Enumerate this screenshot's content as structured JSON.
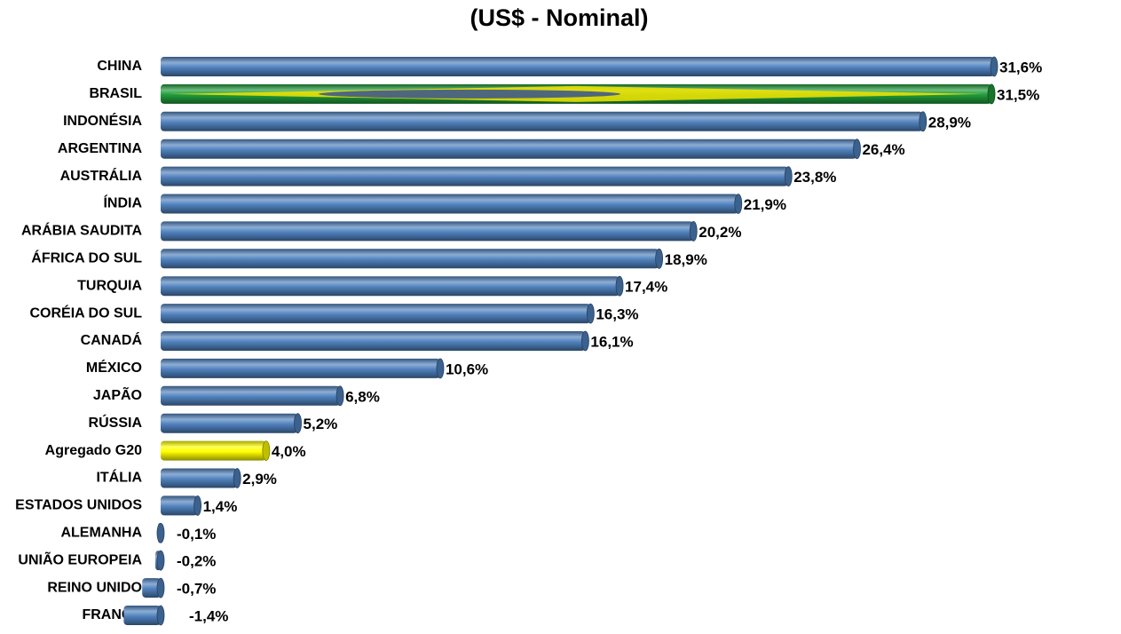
{
  "chart_data": {
    "type": "bar",
    "orientation": "horizontal",
    "title": "(US$ - Nominal)",
    "categories": [
      "CHINA",
      "BRASIL",
      "INDONÉSIA",
      "ARGENTINA",
      "AUSTRÁLIA",
      "ÍNDIA",
      "ARÁBIA SAUDITA",
      "ÁFRICA DO SUL",
      "TURQUIA",
      "CORÉIA DO SUL",
      "CANADÁ",
      "MÉXICO",
      "JAPÃO",
      "RÚSSIA",
      "Agregado G20",
      "ITÁLIA",
      "ESTADOS UNIDOS",
      "ALEMANHA",
      "UNIÃO EUROPEIA",
      "REINO UNIDO",
      "FRANÇA"
    ],
    "values": [
      31.6,
      31.5,
      28.9,
      26.4,
      23.8,
      21.9,
      20.2,
      18.9,
      17.4,
      16.3,
      16.1,
      10.6,
      6.8,
      5.2,
      4.0,
      2.9,
      1.4,
      -0.1,
      -0.2,
      -0.7,
      -1.4
    ],
    "value_labels": [
      "31,6%",
      "31,5%",
      "28,9%",
      "26,4%",
      "23,8%",
      "21,9%",
      "20,2%",
      "18,9%",
      "17,4%",
      "16,3%",
      "16,1%",
      "10,6%",
      "6,8%",
      "5,2%",
      "4,0%",
      "2,9%",
      "1,4%",
      "-0,1%",
      "-0,2%",
      "-0,7%",
      "-1,4%"
    ],
    "colors": [
      "#4f81bd",
      "#1f9a3a",
      "#4f81bd",
      "#4f81bd",
      "#4f81bd",
      "#4f81bd",
      "#4f81bd",
      "#4f81bd",
      "#4f81bd",
      "#4f81bd",
      "#4f81bd",
      "#4f81bd",
      "#4f81bd",
      "#4f81bd",
      "#ffff00",
      "#4f81bd",
      "#4f81bd",
      "#4f81bd",
      "#4f81bd",
      "#4f81bd",
      "#4f81bd"
    ]
  }
}
